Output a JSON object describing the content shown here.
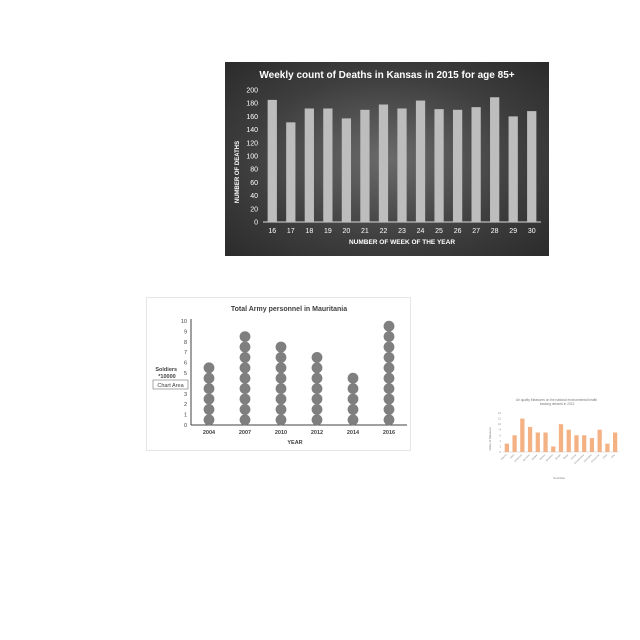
{
  "chart_data": [
    {
      "type": "bar",
      "title": "Weekly count of Deaths in Kansas in 2015 for age 85+",
      "xlabel": "NUMBER OF WEEK OF THE YEAR",
      "ylabel": "NUMBER OF DEATHS",
      "categories": [
        "16",
        "17",
        "18",
        "19",
        "20",
        "21",
        "22",
        "23",
        "24",
        "25",
        "26",
        "27",
        "28",
        "29",
        "30"
      ],
      "values": [
        185,
        151,
        172,
        172,
        157,
        170,
        178,
        172,
        184,
        171,
        170,
        174,
        189,
        160,
        168
      ],
      "ylim": [
        0,
        200
      ],
      "yticks": [
        "0",
        "20",
        "40",
        "60",
        "80",
        "100",
        "120",
        "140",
        "160",
        "180",
        "200"
      ],
      "grid": false,
      "colors": {
        "background": "#3e3e3e",
        "bar": "#bdbdbd",
        "text": "#ffffff"
      }
    },
    {
      "type": "scatter",
      "title": "Total Army personnel in Mauritania",
      "xlabel": "YEAR",
      "ylabel": "Soldiers *10000",
      "categories": [
        "2004",
        "2007",
        "2010",
        "2012",
        "2014",
        "2016"
      ],
      "values": [
        6,
        9,
        8,
        7,
        5,
        10
      ],
      "ylim": [
        0,
        10
      ],
      "yticks": [
        "0",
        "1",
        "2",
        "3",
        "4",
        "5",
        "6",
        "7",
        "8",
        "9",
        "10"
      ],
      "tooltip": "Chart Area",
      "colors": {
        "dot": "#7f7f7f"
      }
    },
    {
      "type": "bar",
      "title": "Air quality Measures on the national environmental health tracking network in 2013",
      "xlabel": "Counties",
      "ylabel": "Value of Measure",
      "categories": [
        "Adams",
        "Allen",
        "Anderson",
        "Atchison",
        "Barber",
        "Barton",
        "Bourbon",
        "Brown",
        "Butler",
        "Chase",
        "Chautauqua",
        "Cherokee",
        "Cheyenne",
        "Clark",
        "Clay"
      ],
      "values": [
        3,
        6,
        12,
        9,
        7,
        7,
        2,
        10,
        8,
        6,
        6,
        5,
        8,
        3,
        7
      ],
      "ylim": [
        0,
        14
      ],
      "colors": {
        "bar": "#f4b183"
      }
    }
  ]
}
